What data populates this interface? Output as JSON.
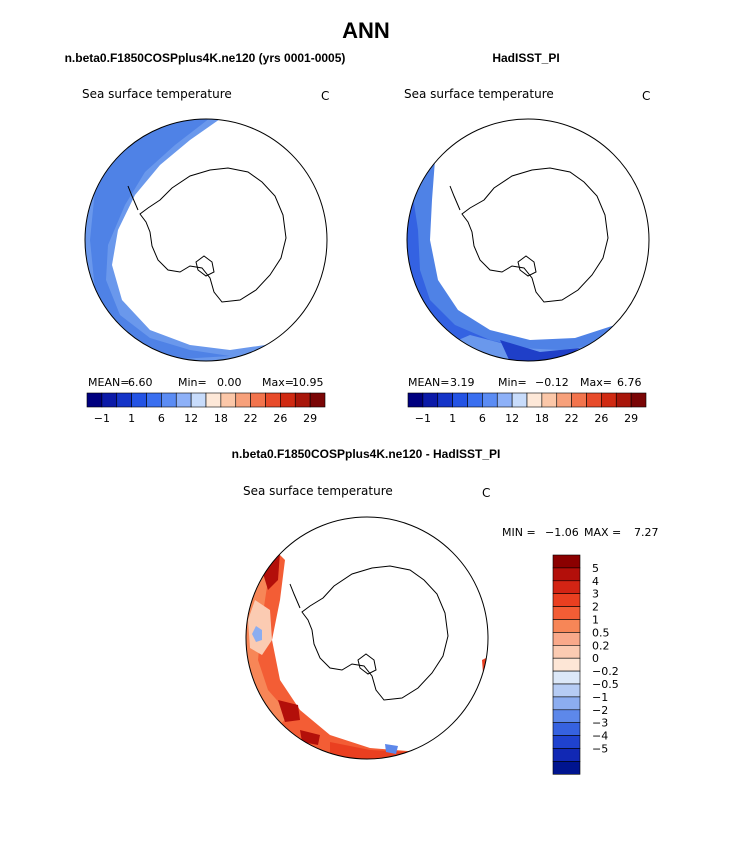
{
  "title": "ANN",
  "panels": [
    {
      "case_title": "n.beta0.F1850COSPplus4K.ne120 (yrs 0001-0005)",
      "var_label": "Sea surface temperature",
      "units": "C",
      "stats": {
        "mean_label": "MEAN=",
        "mean": "6.60",
        "min_label": "Min=",
        "min": "0.00",
        "max_label": "Max=",
        "max": "10.95"
      },
      "colorbar_ticks": [
        "−1",
        "1",
        "6",
        "12",
        "18",
        "22",
        "26",
        "29"
      ]
    },
    {
      "case_title": "HadISST_PI",
      "var_label": "Sea surface temperature",
      "units": "C",
      "stats": {
        "mean_label": "MEAN=",
        "mean": "3.19",
        "min_label": "Min=",
        "min": "−0.12",
        "max_label": "Max=",
        "max": "6.76"
      },
      "colorbar_ticks": [
        "−1",
        "1",
        "6",
        "12",
        "18",
        "22",
        "26",
        "29"
      ]
    }
  ],
  "diff_panel": {
    "title": "n.beta0.F1850COSPplus4K.ne120 - HadISST_PI",
    "var_label": "Sea surface temperature",
    "units": "C",
    "min_label": "MIN =",
    "min": "−1.06",
    "max_label": "MAX =",
    "max": "7.27",
    "colorbar_ticks": [
      "5",
      "4",
      "3",
      "2",
      "1",
      "0.5",
      "0.2",
      "0",
      "−0.2",
      "−0.5",
      "−1",
      "−2",
      "−3",
      "−4",
      "−5"
    ]
  },
  "colors": {
    "abs_scale": [
      "#00007f",
      "#0b1aa8",
      "#1434c8",
      "#2353e4",
      "#3a6ff0",
      "#5b8cf4",
      "#8eb1f8",
      "#c8dcfb",
      "#fde8d8",
      "#fbc7a8",
      "#f7a07a",
      "#f2744d",
      "#e84b2a",
      "#d02a12",
      "#a8160a",
      "#7a0505"
    ],
    "diff_scale": [
      "#8b0000",
      "#b30f0a",
      "#d32414",
      "#ea3f20",
      "#f35d35",
      "#f78657",
      "#f9a98a",
      "#fbcbb2",
      "#fde6d6",
      "#dce8f8",
      "#b6ccf4",
      "#8cadf0",
      "#5d88ea",
      "#3662e0",
      "#1f42cf",
      "#1128b4",
      "#00148f"
    ]
  },
  "chart_data": [
    {
      "type": "heatmap",
      "title": "n.beta0.F1850COSPplus4K.ne120 (yrs 0001-0005)",
      "variable": "Sea surface temperature",
      "units": "C",
      "projection": "south polar stereographic",
      "mean": 6.6,
      "min": 0.0,
      "max": 10.95,
      "contour_levels": [
        -1,
        1,
        6,
        12,
        18,
        22,
        26,
        29
      ]
    },
    {
      "type": "heatmap",
      "title": "HadISST_PI",
      "variable": "Sea surface temperature",
      "units": "C",
      "projection": "south polar stereographic",
      "mean": 3.19,
      "min": -0.12,
      "max": 6.76,
      "contour_levels": [
        -1,
        1,
        6,
        12,
        18,
        22,
        26,
        29
      ]
    },
    {
      "type": "heatmap",
      "title": "n.beta0.F1850COSPplus4K.ne120 - HadISST_PI",
      "variable": "Sea surface temperature",
      "units": "C",
      "projection": "south polar stereographic",
      "min": -1.06,
      "max": 7.27,
      "contour_levels": [
        5,
        4,
        3,
        2,
        1,
        0.5,
        0.2,
        0,
        -0.2,
        -0.5,
        -1,
        -2,
        -3,
        -4,
        -5
      ]
    }
  ]
}
